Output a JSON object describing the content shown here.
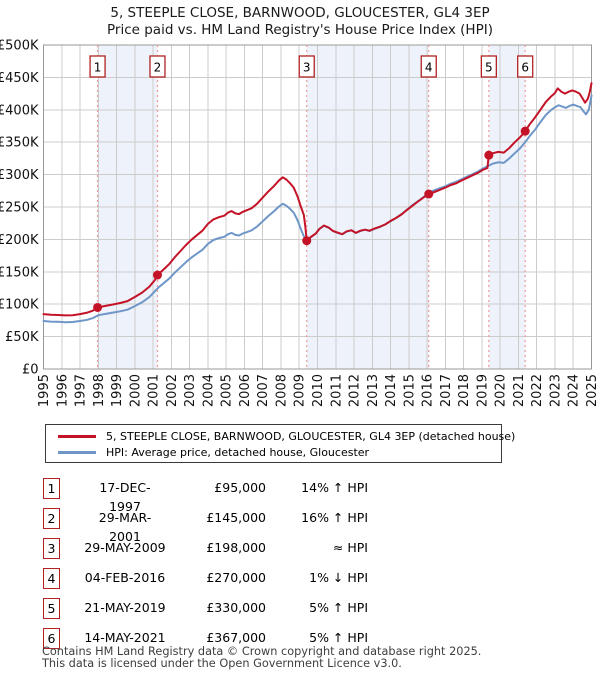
{
  "title": {
    "line1": "5, STEEPLE CLOSE, BARNWOOD, GLOUCESTER, GL4 3EP",
    "line2": "Price paid vs. HM Land Registry's House Price Index (HPI)"
  },
  "chart_data": {
    "type": "line",
    "x_min": 1995,
    "x_max": 2025,
    "y_min": 0,
    "y_max": 500000,
    "x_ticks": [
      1995,
      1996,
      1997,
      1998,
      1999,
      2000,
      2001,
      2002,
      2003,
      2004,
      2005,
      2006,
      2007,
      2008,
      2009,
      2010,
      2011,
      2012,
      2013,
      2014,
      2015,
      2016,
      2017,
      2018,
      2019,
      2020,
      2021,
      2022,
      2023,
      2024,
      2025
    ],
    "y_ticks": [
      0,
      50000,
      100000,
      150000,
      200000,
      250000,
      300000,
      350000,
      400000,
      450000,
      500000
    ],
    "y_tick_labels": [
      "£0",
      "£50K",
      "£100K",
      "£150K",
      "£200K",
      "£250K",
      "£300K",
      "£350K",
      "£400K",
      "£450K",
      "£500K"
    ],
    "grid": true,
    "legend_position": "below",
    "colors": {
      "price_line": "#c41227",
      "hpi_line": "#6e96c8",
      "band_fill": "#eef2fa",
      "sale_dash": "#f09a9a",
      "grid_line": "#cccccc",
      "plot_border": "#999999",
      "marker_box_border": "#b02222",
      "marker_dot": "#c41227"
    },
    "bands": [
      [
        1997.96,
        2001.24
      ],
      [
        2009.41,
        2016.09
      ],
      [
        2019.38,
        2021.37
      ]
    ],
    "sales": [
      {
        "num": "1",
        "year": 1997.96,
        "price": 95000
      },
      {
        "num": "2",
        "year": 2001.24,
        "price": 145000
      },
      {
        "num": "3",
        "year": 2009.41,
        "price": 198000
      },
      {
        "num": "4",
        "year": 2016.09,
        "price": 270000
      },
      {
        "num": "5",
        "year": 2019.38,
        "price": 330000
      },
      {
        "num": "6",
        "year": 2021.37,
        "price": 367000
      }
    ],
    "series": [
      {
        "name": "hpi",
        "label": "HPI: Average price, detached house, Gloucester",
        "color": "#6e96c8",
        "points": [
          [
            1995.0,
            74000
          ],
          [
            1995.4,
            73200
          ],
          [
            1995.8,
            72800
          ],
          [
            1996.2,
            72200
          ],
          [
            1996.6,
            72600
          ],
          [
            1997.0,
            74000
          ],
          [
            1997.4,
            76000
          ],
          [
            1997.7,
            78500
          ],
          [
            1998.0,
            83000
          ],
          [
            1998.4,
            85000
          ],
          [
            1998.8,
            87000
          ],
          [
            1999.2,
            89000
          ],
          [
            1999.6,
            91500
          ],
          [
            2000.0,
            97000
          ],
          [
            2000.4,
            103000
          ],
          [
            2000.8,
            111000
          ],
          [
            2001.1,
            120000
          ],
          [
            2001.3,
            126000
          ],
          [
            2001.6,
            133000
          ],
          [
            2001.9,
            140000
          ],
          [
            2002.2,
            149000
          ],
          [
            2002.5,
            157000
          ],
          [
            2002.8,
            165000
          ],
          [
            2003.1,
            172000
          ],
          [
            2003.4,
            178000
          ],
          [
            2003.7,
            184000
          ],
          [
            2004.0,
            193000
          ],
          [
            2004.3,
            199000
          ],
          [
            2004.6,
            202000
          ],
          [
            2004.9,
            204000
          ],
          [
            2005.1,
            208000
          ],
          [
            2005.3,
            210000
          ],
          [
            2005.5,
            207000
          ],
          [
            2005.7,
            206000
          ],
          [
            2005.9,
            209000
          ],
          [
            2006.1,
            211000
          ],
          [
            2006.4,
            214000
          ],
          [
            2006.7,
            220000
          ],
          [
            2007.0,
            228000
          ],
          [
            2007.3,
            236000
          ],
          [
            2007.6,
            243000
          ],
          [
            2007.9,
            251000
          ],
          [
            2008.1,
            255000
          ],
          [
            2008.3,
            252000
          ],
          [
            2008.5,
            247000
          ],
          [
            2008.7,
            241000
          ],
          [
            2008.9,
            230000
          ],
          [
            2009.1,
            215000
          ],
          [
            2009.25,
            205000
          ],
          [
            2009.41,
            198000
          ],
          [
            2009.6,
            203000
          ],
          [
            2009.9,
            209000
          ],
          [
            2010.1,
            216000
          ],
          [
            2010.35,
            221000
          ],
          [
            2010.6,
            218000
          ],
          [
            2010.85,
            213000
          ],
          [
            2011.1,
            210000
          ],
          [
            2011.35,
            208000
          ],
          [
            2011.6,
            212000
          ],
          [
            2011.85,
            214000
          ],
          [
            2012.1,
            210000
          ],
          [
            2012.35,
            213000
          ],
          [
            2012.6,
            215000
          ],
          [
            2012.85,
            213000
          ],
          [
            2013.1,
            216000
          ],
          [
            2013.4,
            219000
          ],
          [
            2013.7,
            223000
          ],
          [
            2014.0,
            228000
          ],
          [
            2014.3,
            233000
          ],
          [
            2014.6,
            239000
          ],
          [
            2014.9,
            246000
          ],
          [
            2015.2,
            253000
          ],
          [
            2015.5,
            259000
          ],
          [
            2015.8,
            265000
          ],
          [
            2016.09,
            272000
          ],
          [
            2016.4,
            276000
          ],
          [
            2016.7,
            279000
          ],
          [
            2017.0,
            282000
          ],
          [
            2017.3,
            286000
          ],
          [
            2017.6,
            289000
          ],
          [
            2017.9,
            293000
          ],
          [
            2018.2,
            297000
          ],
          [
            2018.5,
            301000
          ],
          [
            2018.8,
            305000
          ],
          [
            2019.1,
            310000
          ],
          [
            2019.38,
            314000
          ],
          [
            2019.6,
            317000
          ],
          [
            2019.9,
            319000
          ],
          [
            2020.2,
            318000
          ],
          [
            2020.5,
            325000
          ],
          [
            2020.8,
            333000
          ],
          [
            2021.1,
            341000
          ],
          [
            2021.37,
            350000
          ],
          [
            2021.6,
            359000
          ],
          [
            2021.9,
            369000
          ],
          [
            2022.2,
            381000
          ],
          [
            2022.5,
            392000
          ],
          [
            2022.8,
            400000
          ],
          [
            2023.0,
            404000
          ],
          [
            2023.2,
            407000
          ],
          [
            2023.4,
            405000
          ],
          [
            2023.6,
            403000
          ],
          [
            2023.8,
            406000
          ],
          [
            2024.0,
            408000
          ],
          [
            2024.2,
            406000
          ],
          [
            2024.4,
            404000
          ],
          [
            2024.55,
            398000
          ],
          [
            2024.7,
            393000
          ],
          [
            2024.85,
            400000
          ],
          [
            2025.0,
            422000
          ]
        ]
      },
      {
        "name": "price-paid",
        "label": "5, STEEPLE CLOSE, BARNWOOD, GLOUCESTER, GL4 3EP (detached house)",
        "color": "#c41227",
        "points": [
          [
            1995.0,
            84700
          ],
          [
            1995.4,
            83800
          ],
          [
            1995.8,
            83300
          ],
          [
            1996.2,
            82700
          ],
          [
            1996.6,
            83100
          ],
          [
            1997.0,
            84700
          ],
          [
            1997.4,
            87000
          ],
          [
            1997.7,
            89900
          ],
          [
            1997.96,
            95000
          ],
          [
            1998.4,
            97300
          ],
          [
            1998.8,
            99600
          ],
          [
            1999.2,
            101900
          ],
          [
            1999.6,
            104800
          ],
          [
            2000.0,
            111100
          ],
          [
            2000.4,
            117900
          ],
          [
            2000.8,
            127100
          ],
          [
            2001.1,
            137400
          ],
          [
            2001.24,
            145000
          ],
          [
            2001.6,
            154300
          ],
          [
            2001.9,
            162400
          ],
          [
            2002.2,
            172800
          ],
          [
            2002.5,
            182100
          ],
          [
            2002.8,
            191400
          ],
          [
            2003.1,
            199500
          ],
          [
            2003.4,
            206500
          ],
          [
            2003.7,
            213400
          ],
          [
            2004.0,
            223900
          ],
          [
            2004.3,
            230800
          ],
          [
            2004.6,
            234300
          ],
          [
            2004.9,
            236600
          ],
          [
            2005.1,
            241300
          ],
          [
            2005.3,
            243600
          ],
          [
            2005.5,
            240100
          ],
          [
            2005.7,
            239000
          ],
          [
            2005.9,
            242400
          ],
          [
            2006.1,
            244800
          ],
          [
            2006.4,
            248200
          ],
          [
            2006.7,
            255200
          ],
          [
            2007.0,
            264500
          ],
          [
            2007.3,
            273800
          ],
          [
            2007.6,
            281900
          ],
          [
            2007.9,
            291200
          ],
          [
            2008.1,
            295800
          ],
          [
            2008.3,
            292300
          ],
          [
            2008.5,
            286500
          ],
          [
            2008.7,
            279600
          ],
          [
            2008.9,
            266800
          ],
          [
            2009.1,
            249400
          ],
          [
            2009.25,
            237800
          ],
          [
            2009.33,
            220000
          ],
          [
            2009.41,
            198000
          ],
          [
            2009.6,
            203000
          ],
          [
            2009.9,
            209000
          ],
          [
            2010.1,
            216000
          ],
          [
            2010.35,
            221500
          ],
          [
            2010.6,
            218500
          ],
          [
            2010.85,
            213000
          ],
          [
            2011.1,
            210500
          ],
          [
            2011.35,
            208000
          ],
          [
            2011.6,
            212500
          ],
          [
            2011.85,
            214000
          ],
          [
            2012.1,
            210000
          ],
          [
            2012.35,
            213500
          ],
          [
            2012.6,
            215000
          ],
          [
            2012.85,
            213500
          ],
          [
            2013.1,
            216500
          ],
          [
            2013.4,
            219500
          ],
          [
            2013.7,
            223000
          ],
          [
            2014.0,
            228500
          ],
          [
            2014.3,
            233000
          ],
          [
            2014.6,
            238500
          ],
          [
            2014.9,
            245500
          ],
          [
            2015.2,
            252000
          ],
          [
            2015.5,
            258500
          ],
          [
            2015.8,
            264500
          ],
          [
            2016.09,
            270000
          ],
          [
            2016.4,
            273000
          ],
          [
            2016.7,
            276500
          ],
          [
            2017.0,
            280000
          ],
          [
            2017.3,
            284000
          ],
          [
            2017.6,
            286500
          ],
          [
            2017.9,
            291000
          ],
          [
            2018.2,
            295000
          ],
          [
            2018.5,
            299000
          ],
          [
            2018.8,
            303000
          ],
          [
            2019.1,
            308000
          ],
          [
            2019.3,
            310000
          ],
          [
            2019.38,
            330000
          ],
          [
            2019.6,
            333000
          ],
          [
            2019.9,
            335000
          ],
          [
            2020.2,
            334000
          ],
          [
            2020.5,
            341000
          ],
          [
            2020.8,
            350000
          ],
          [
            2021.1,
            358000
          ],
          [
            2021.37,
            367000
          ],
          [
            2021.6,
            377000
          ],
          [
            2021.9,
            388000
          ],
          [
            2022.2,
            400000
          ],
          [
            2022.5,
            412000
          ],
          [
            2022.8,
            421000
          ],
          [
            2023.0,
            426000
          ],
          [
            2023.15,
            433000
          ],
          [
            2023.35,
            428000
          ],
          [
            2023.55,
            425000
          ],
          [
            2023.75,
            428000
          ],
          [
            2023.95,
            430000
          ],
          [
            2024.15,
            428000
          ],
          [
            2024.35,
            425000
          ],
          [
            2024.5,
            418000
          ],
          [
            2024.65,
            411000
          ],
          [
            2024.8,
            417000
          ],
          [
            2024.9,
            427000
          ],
          [
            2025.0,
            441000
          ]
        ]
      }
    ]
  },
  "legend": {
    "items": [
      {
        "label": "5, STEEPLE CLOSE, BARNWOOD, GLOUCESTER, GL4 3EP (detached house)",
        "color": "#c41227"
      },
      {
        "label": "HPI: Average price, detached house, Gloucester",
        "color": "#6e96c8"
      }
    ]
  },
  "table": {
    "rows": [
      {
        "num": "1",
        "date": "17-DEC-1997",
        "price": "£95,000",
        "hpi": "14% ↑ HPI"
      },
      {
        "num": "2",
        "date": "29-MAR-2001",
        "price": "£145,000",
        "hpi": "16% ↑ HPI"
      },
      {
        "num": "3",
        "date": "29-MAY-2009",
        "price": "£198,000",
        "hpi": "≈ HPI"
      },
      {
        "num": "4",
        "date": "04-FEB-2016",
        "price": "£270,000",
        "hpi": "1% ↓ HPI"
      },
      {
        "num": "5",
        "date": "21-MAY-2019",
        "price": "£330,000",
        "hpi": "5% ↑ HPI"
      },
      {
        "num": "6",
        "date": "14-MAY-2021",
        "price": "£367,000",
        "hpi": "5% ↑ HPI"
      }
    ]
  },
  "footer": {
    "line1": "Contains HM Land Registry data © Crown copyright and database right 2025.",
    "line2": "This data is licensed under the Open Government Licence v3.0."
  }
}
